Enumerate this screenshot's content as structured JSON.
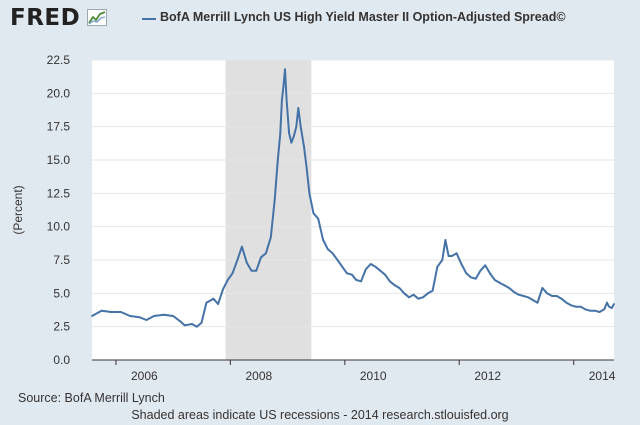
{
  "logo": {
    "text": "FRED",
    "icon": "fred-graph-icon"
  },
  "colors": {
    "line": "#4572a7",
    "recession": "#e0e0e0",
    "plot_bg": "#ffffff",
    "page_bg": "#e1e9f0",
    "grid": "#e6e6e6"
  },
  "chart_data": {
    "type": "line",
    "legend": "BofA Merrill Lynch US High Yield Master II Option-Adjusted Spread©",
    "ylabel": "(Percent)",
    "xlabel": "",
    "xlim": [
      "2005-08-01",
      "2014-09-15"
    ],
    "ylim": [
      0,
      22.5
    ],
    "yticks": [
      "0.0",
      "2.5",
      "5.0",
      "7.5",
      "10.0",
      "12.5",
      "15.0",
      "17.5",
      "20.0",
      "22.5"
    ],
    "xticks": [
      "2006",
      "2008",
      "2010",
      "2012",
      "2014"
    ],
    "recessions": [
      {
        "start": "2007-12-01",
        "end": "2009-06-01"
      }
    ],
    "grid": true,
    "series": [
      {
        "name": "BofA Merrill Lynch US High Yield Master II Option-Adjusted Spread©",
        "points": [
          [
            "2005-08-01",
            3.3
          ],
          [
            "2005-10-01",
            3.7
          ],
          [
            "2005-12-01",
            3.6
          ],
          [
            "2006-02-01",
            3.6
          ],
          [
            "2006-04-01",
            3.3
          ],
          [
            "2006-06-01",
            3.2
          ],
          [
            "2006-07-15",
            3.0
          ],
          [
            "2006-09-01",
            3.3
          ],
          [
            "2006-11-01",
            3.4
          ],
          [
            "2007-01-01",
            3.3
          ],
          [
            "2007-02-15",
            2.9
          ],
          [
            "2007-03-15",
            2.6
          ],
          [
            "2007-05-01",
            2.7
          ],
          [
            "2007-06-01",
            2.5
          ],
          [
            "2007-07-01",
            2.8
          ],
          [
            "2007-08-01",
            4.3
          ],
          [
            "2007-09-15",
            4.6
          ],
          [
            "2007-10-15",
            4.2
          ],
          [
            "2007-11-15",
            5.3
          ],
          [
            "2007-12-15",
            6.0
          ],
          [
            "2008-01-15",
            6.5
          ],
          [
            "2008-02-15",
            7.5
          ],
          [
            "2008-03-15",
            8.5
          ],
          [
            "2008-04-15",
            7.3
          ],
          [
            "2008-05-15",
            6.7
          ],
          [
            "2008-06-15",
            6.7
          ],
          [
            "2008-07-15",
            7.7
          ],
          [
            "2008-08-15",
            8.0
          ],
          [
            "2008-09-15",
            9.2
          ],
          [
            "2008-10-10",
            12.0
          ],
          [
            "2008-10-30",
            15.0
          ],
          [
            "2008-11-15",
            17.0
          ],
          [
            "2008-11-25",
            19.5
          ],
          [
            "2008-12-05",
            20.5
          ],
          [
            "2008-12-15",
            21.8
          ],
          [
            "2008-12-25",
            19.5
          ],
          [
            "2009-01-10",
            17.0
          ],
          [
            "2009-01-25",
            16.3
          ],
          [
            "2009-02-10",
            16.8
          ],
          [
            "2009-02-25",
            17.5
          ],
          [
            "2009-03-10",
            18.9
          ],
          [
            "2009-03-25",
            17.5
          ],
          [
            "2009-04-15",
            16.0
          ],
          [
            "2009-05-01",
            14.5
          ],
          [
            "2009-05-20",
            12.5
          ],
          [
            "2009-06-15",
            11.0
          ],
          [
            "2009-07-15",
            10.6
          ],
          [
            "2009-08-15",
            9.0
          ],
          [
            "2009-09-15",
            8.3
          ],
          [
            "2009-10-15",
            8.0
          ],
          [
            "2009-11-15",
            7.5
          ],
          [
            "2009-12-15",
            7.0
          ],
          [
            "2010-01-15",
            6.5
          ],
          [
            "2010-02-15",
            6.4
          ],
          [
            "2010-03-15",
            6.0
          ],
          [
            "2010-04-15",
            5.9
          ],
          [
            "2010-05-15",
            6.8
          ],
          [
            "2010-06-15",
            7.2
          ],
          [
            "2010-07-15",
            7.0
          ],
          [
            "2010-08-15",
            6.7
          ],
          [
            "2010-09-15",
            6.4
          ],
          [
            "2010-10-15",
            5.9
          ],
          [
            "2010-11-15",
            5.6
          ],
          [
            "2010-12-15",
            5.4
          ],
          [
            "2011-01-15",
            5.0
          ],
          [
            "2011-02-15",
            4.7
          ],
          [
            "2011-03-15",
            4.9
          ],
          [
            "2011-04-15",
            4.6
          ],
          [
            "2011-05-15",
            4.7
          ],
          [
            "2011-06-15",
            5.0
          ],
          [
            "2011-07-15",
            5.2
          ],
          [
            "2011-08-15",
            7.0
          ],
          [
            "2011-09-15",
            7.5
          ],
          [
            "2011-10-05",
            9.0
          ],
          [
            "2011-10-25",
            7.8
          ],
          [
            "2011-11-15",
            7.8
          ],
          [
            "2011-12-15",
            8.0
          ],
          [
            "2012-01-15",
            7.2
          ],
          [
            "2012-02-15",
            6.5
          ],
          [
            "2012-03-15",
            6.2
          ],
          [
            "2012-04-15",
            6.1
          ],
          [
            "2012-05-15",
            6.7
          ],
          [
            "2012-06-15",
            7.1
          ],
          [
            "2012-07-15",
            6.5
          ],
          [
            "2012-08-15",
            6.0
          ],
          [
            "2012-09-15",
            5.8
          ],
          [
            "2012-10-15",
            5.6
          ],
          [
            "2012-11-15",
            5.4
          ],
          [
            "2012-12-15",
            5.1
          ],
          [
            "2013-01-15",
            4.9
          ],
          [
            "2013-02-15",
            4.8
          ],
          [
            "2013-03-15",
            4.7
          ],
          [
            "2013-04-15",
            4.5
          ],
          [
            "2013-05-15",
            4.3
          ],
          [
            "2013-06-15",
            5.4
          ],
          [
            "2013-07-15",
            5.0
          ],
          [
            "2013-08-15",
            4.8
          ],
          [
            "2013-09-15",
            4.8
          ],
          [
            "2013-10-15",
            4.6
          ],
          [
            "2013-11-15",
            4.3
          ],
          [
            "2013-12-15",
            4.1
          ],
          [
            "2014-01-15",
            4.0
          ],
          [
            "2014-02-15",
            4.0
          ],
          [
            "2014-03-15",
            3.8
          ],
          [
            "2014-04-15",
            3.7
          ],
          [
            "2014-05-15",
            3.7
          ],
          [
            "2014-06-15",
            3.6
          ],
          [
            "2014-07-15",
            3.8
          ],
          [
            "2014-08-01",
            4.3
          ],
          [
            "2014-08-15",
            4.0
          ],
          [
            "2014-09-01",
            3.9
          ],
          [
            "2014-09-15",
            4.2
          ]
        ]
      }
    ]
  },
  "footer": {
    "source": "Source: BofA Merrill Lynch",
    "note": "Shaded areas indicate US recessions - 2014 research.stlouisfed.org"
  }
}
